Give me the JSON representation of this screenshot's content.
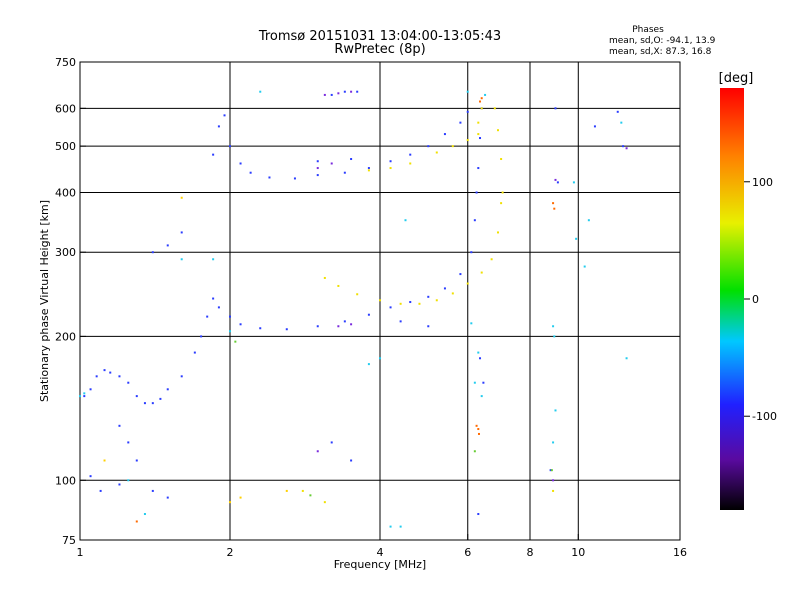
{
  "header": {
    "title_line1": "Tromsø 20151031 13:04:00-13:05:43",
    "title_line2": "RwPretec (8p)"
  },
  "stats": {
    "heading": "Phases",
    "line1": "mean, sd,O: -94.1, 13.9",
    "line2": "mean, sd,X:  87.3, 16.8"
  },
  "chart_data": {
    "type": "scatter",
    "xlabel": "Frequency [MHz]",
    "ylabel": "Stationary phase Virtual Height [km]",
    "xscale": "log",
    "yscale": "log",
    "xlim": [
      1,
      16
    ],
    "ylim": [
      75,
      750
    ],
    "xticks": [
      1,
      2,
      4,
      6,
      8,
      10,
      16
    ],
    "yticks": [
      75,
      100,
      200,
      300,
      400,
      500,
      600,
      750
    ],
    "x_gridlines": [
      2,
      4,
      6,
      8,
      10
    ],
    "y_gridlines": [
      100,
      200,
      300,
      400,
      500,
      600
    ],
    "grid": true,
    "colorbar": {
      "label": "[deg]",
      "ticks": [
        100,
        0,
        -100
      ],
      "min": -180,
      "max": 180
    },
    "series": [
      {
        "name": "",
        "color": "#2a3cff",
        "phase": -95,
        "points": [
          [
            1.02,
            150
          ],
          [
            1.05,
            155
          ],
          [
            1.08,
            165
          ],
          [
            1.12,
            170
          ],
          [
            1.15,
            168
          ],
          [
            1.2,
            165
          ],
          [
            1.25,
            160
          ],
          [
            1.3,
            150
          ],
          [
            1.35,
            145
          ],
          [
            1.4,
            145
          ],
          [
            1.45,
            148
          ],
          [
            1.5,
            155
          ],
          [
            1.6,
            165
          ],
          [
            1.7,
            185
          ],
          [
            1.75,
            200
          ],
          [
            1.8,
            220
          ],
          [
            1.85,
            240
          ],
          [
            1.9,
            230
          ],
          [
            2.0,
            220
          ],
          [
            2.1,
            212
          ],
          [
            2.3,
            208
          ],
          [
            2.6,
            207
          ],
          [
            3.0,
            210
          ],
          [
            3.4,
            215
          ],
          [
            3.8,
            222
          ],
          [
            4.2,
            230
          ],
          [
            4.6,
            236
          ],
          [
            5.0,
            242
          ],
          [
            5.4,
            252
          ],
          [
            5.8,
            270
          ],
          [
            6.1,
            300
          ],
          [
            6.2,
            350
          ],
          [
            6.25,
            400
          ],
          [
            6.3,
            450
          ],
          [
            6.35,
            520
          ],
          [
            6.4,
            600
          ],
          [
            1.85,
            480
          ],
          [
            1.9,
            550
          ],
          [
            1.95,
            580
          ],
          [
            2.0,
            500
          ],
          [
            2.1,
            460
          ],
          [
            2.2,
            440
          ],
          [
            2.4,
            430
          ],
          [
            2.7,
            428
          ],
          [
            3.0,
            435
          ],
          [
            3.4,
            440
          ],
          [
            3.8,
            450
          ],
          [
            4.2,
            465
          ],
          [
            4.6,
            480
          ],
          [
            5.0,
            500
          ],
          [
            5.4,
            530
          ],
          [
            5.8,
            560
          ],
          [
            6.0,
            590
          ],
          [
            1.4,
            300
          ],
          [
            1.5,
            310
          ],
          [
            1.6,
            330
          ],
          [
            1.3,
            110
          ],
          [
            1.25,
            120
          ],
          [
            1.2,
            130
          ],
          [
            1.1,
            95
          ],
          [
            1.4,
            95
          ],
          [
            1.5,
            92
          ],
          [
            1.2,
            98
          ],
          [
            1.05,
            102
          ],
          [
            3.2,
            640
          ],
          [
            3.4,
            650
          ],
          [
            3.6,
            650
          ],
          [
            3.0,
            465
          ],
          [
            3.5,
            470
          ],
          [
            4.4,
            215
          ],
          [
            6.35,
            180
          ],
          [
            6.3,
            85
          ],
          [
            6.45,
            160
          ],
          [
            8.8,
            105
          ],
          [
            9.0,
            600
          ],
          [
            9.1,
            420
          ],
          [
            10.8,
            550
          ],
          [
            12.0,
            590
          ],
          [
            12.3,
            500
          ],
          [
            3.2,
            120
          ],
          [
            3.5,
            110
          ],
          [
            5.0,
            210
          ]
        ]
      },
      {
        "name": "",
        "color": "#f0e000",
        "phase": 90,
        "points": [
          [
            3.1,
            265
          ],
          [
            3.3,
            255
          ],
          [
            3.6,
            245
          ],
          [
            4.0,
            238
          ],
          [
            4.4,
            234
          ],
          [
            4.8,
            234
          ],
          [
            5.2,
            238
          ],
          [
            5.6,
            246
          ],
          [
            6.0,
            258
          ],
          [
            6.4,
            272
          ],
          [
            6.7,
            290
          ],
          [
            6.9,
            330
          ],
          [
            7.0,
            380
          ],
          [
            7.05,
            400
          ],
          [
            7.0,
            470
          ],
          [
            6.9,
            540
          ],
          [
            6.8,
            600
          ],
          [
            5.2,
            485
          ],
          [
            5.6,
            500
          ],
          [
            6.0,
            515
          ],
          [
            6.3,
            530
          ],
          [
            4.6,
            460
          ],
          [
            4.2,
            450
          ],
          [
            3.8,
            445
          ],
          [
            2.8,
            95
          ],
          [
            3.1,
            90
          ],
          [
            8.9,
            95
          ],
          [
            6.3,
            560
          ],
          [
            6.4,
            600
          ]
        ]
      },
      {
        "name": "",
        "color": "#ffd000",
        "phase": 110,
        "points": [
          [
            1.12,
            110
          ],
          [
            1.6,
            390
          ],
          [
            2.0,
            90
          ],
          [
            2.1,
            92
          ],
          [
            2.6,
            95
          ]
        ]
      },
      {
        "name": "",
        "color": "#ff6a00",
        "phase": 150,
        "points": [
          [
            6.35,
            620
          ],
          [
            6.4,
            630
          ],
          [
            6.25,
            130
          ],
          [
            6.3,
            128
          ],
          [
            6.32,
            125
          ],
          [
            8.9,
            380
          ],
          [
            8.95,
            370
          ],
          [
            1.3,
            82
          ]
        ]
      },
      {
        "name": "",
        "color": "#22ccee",
        "phase": -30,
        "points": [
          [
            1.0,
            150
          ],
          [
            1.02,
            152
          ],
          [
            1.6,
            290
          ],
          [
            1.85,
            290
          ],
          [
            2.0,
            205
          ],
          [
            4.2,
            80
          ],
          [
            4.4,
            80
          ],
          [
            6.1,
            213
          ],
          [
            6.3,
            185
          ],
          [
            6.2,
            160
          ],
          [
            6.4,
            150
          ],
          [
            8.9,
            210
          ],
          [
            8.95,
            200
          ],
          [
            9.0,
            140
          ],
          [
            8.9,
            120
          ],
          [
            9.8,
            420
          ],
          [
            9.9,
            320
          ],
          [
            10.3,
            280
          ],
          [
            10.5,
            350
          ],
          [
            12.2,
            560
          ],
          [
            12.5,
            180
          ],
          [
            4.0,
            180
          ],
          [
            4.5,
            350
          ],
          [
            3.8,
            175
          ],
          [
            6.0,
            650
          ],
          [
            6.5,
            640
          ],
          [
            1.25,
            100
          ],
          [
            1.35,
            85
          ],
          [
            2.3,
            650
          ]
        ]
      },
      {
        "name": "",
        "color": "#7a2bdd",
        "phase": -140,
        "points": [
          [
            3.1,
            640
          ],
          [
            3.3,
            645
          ],
          [
            3.5,
            650
          ],
          [
            3.0,
            450
          ],
          [
            3.2,
            460
          ],
          [
            3.3,
            210
          ],
          [
            3.5,
            212
          ],
          [
            8.9,
            100
          ],
          [
            9.0,
            425
          ],
          [
            12.5,
            495
          ],
          [
            3.0,
            115
          ]
        ]
      },
      {
        "name": "",
        "color": "#66cc33",
        "phase": 30,
        "points": [
          [
            2.05,
            195
          ],
          [
            2.9,
            93
          ],
          [
            8.85,
            105
          ],
          [
            6.2,
            115
          ]
        ]
      }
    ]
  }
}
